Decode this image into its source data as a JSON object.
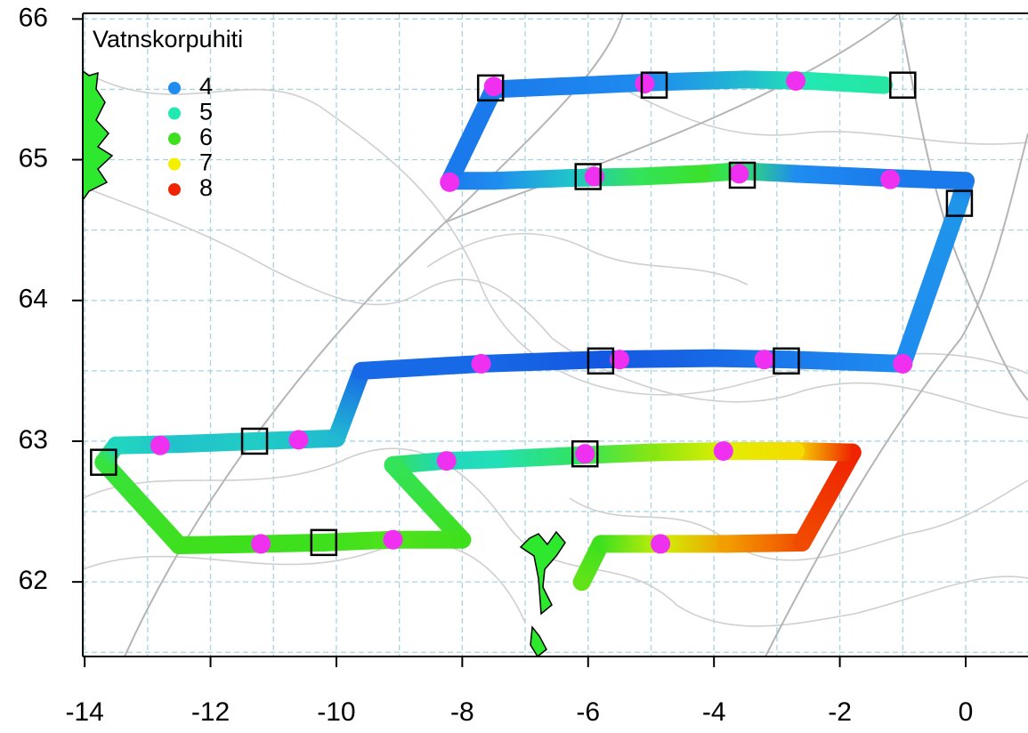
{
  "chart_data": {
    "type": "track",
    "legend_title": "Vatnskorpuhiti",
    "legend": {
      "values": [
        4,
        5,
        6,
        7,
        8
      ],
      "colors": [
        "#1f8cf0",
        "#22e8b2",
        "#3ee01e",
        "#f4f000",
        "#f02200"
      ]
    },
    "legend_position": "top-left",
    "xlim": [
      -14.03,
      0.99
    ],
    "ylim": [
      61.47,
      66.04
    ],
    "xticks": [
      -14,
      -12,
      -10,
      -8,
      -6,
      -4,
      -2,
      0
    ],
    "yticks": [
      62,
      63,
      64,
      65,
      66
    ],
    "xgrid": [
      -14,
      -13,
      -12,
      -11,
      -10,
      -9,
      -8,
      -7,
      -6,
      -5,
      -4,
      -3,
      -2,
      -1,
      0
    ],
    "ygrid": [
      61.5,
      62,
      62.5,
      63,
      63.5,
      64,
      64.5,
      65,
      65.5,
      66
    ],
    "grid": true,
    "track": {
      "x": [
        -6.1,
        -5.8,
        -4.8,
        -3.8,
        -2.6,
        -1.8,
        -2.7,
        -3.8,
        -5.0,
        -6.1,
        -7.5,
        -8.3,
        -9.1,
        -8.0,
        -9.1,
        -10.2,
        -11.2,
        -12.5,
        -13.7,
        -13.5,
        -12.5,
        -11.3,
        -10.0,
        -9.6,
        -7.7,
        -5.8,
        -4.0,
        -2.8,
        -1.0,
        -0.1,
        0.0,
        -1.2,
        -2.7,
        -3.6,
        -4.2,
        -5.2,
        -6.3,
        -7.5,
        -8.2,
        -7.5,
        -5.0,
        -3.5,
        -2.5,
        -1.3
      ],
      "y": [
        62.0,
        62.27,
        62.27,
        62.27,
        62.28,
        62.92,
        62.93,
        62.93,
        62.92,
        62.9,
        62.87,
        62.86,
        62.83,
        62.3,
        62.3,
        62.28,
        62.27,
        62.26,
        62.85,
        62.97,
        62.98,
        63.0,
        63.02,
        63.5,
        63.55,
        63.58,
        63.59,
        63.58,
        63.55,
        64.7,
        64.85,
        64.87,
        64.9,
        64.92,
        64.9,
        64.88,
        64.87,
        64.85,
        64.85,
        65.5,
        65.55,
        65.57,
        65.56,
        65.53
      ],
      "values": [
        6.2,
        6.0,
        6.8,
        7.4,
        7.8,
        8.0,
        7.1,
        6.9,
        6.4,
        5.6,
        4.9,
        4.8,
        5.6,
        6.0,
        6.1,
        6.0,
        6.0,
        6.0,
        5.8,
        4.8,
        4.6,
        4.7,
        4.5,
        3.8,
        3.8,
        3.7,
        3.8,
        3.9,
        4.0,
        4.1,
        3.9,
        3.9,
        4.0,
        5.5,
        5.9,
        5.6,
        4.6,
        4.0,
        3.9,
        3.9,
        4.0,
        4.5,
        5.0,
        5.1
      ]
    },
    "stations": {
      "color": "#f030f0",
      "x": [
        -7.5,
        -5.1,
        -2.7,
        -8.2,
        -5.9,
        -3.6,
        -1.2,
        -7.7,
        -5.5,
        -3.2,
        -1.0,
        -12.8,
        -10.6,
        -8.25,
        -6.05,
        -3.85,
        -11.2,
        -9.1,
        -4.85
      ],
      "y": [
        65.52,
        65.54,
        65.56,
        64.84,
        64.88,
        64.9,
        64.86,
        63.55,
        63.58,
        63.58,
        63.55,
        62.97,
        63.01,
        62.86,
        62.91,
        62.93,
        62.27,
        62.3,
        62.27
      ]
    },
    "squares": {
      "color": "#000000",
      "x": [
        -7.55,
        -4.95,
        -1.0,
        -6.0,
        -3.55,
        -0.1,
        -5.8,
        -2.85,
        -13.7,
        -11.3,
        -10.2,
        -6.05
      ],
      "y": [
        65.51,
        65.53,
        65.53,
        64.88,
        64.89,
        64.69,
        63.57,
        63.57,
        62.85,
        63.0,
        62.28,
        62.91
      ]
    }
  }
}
